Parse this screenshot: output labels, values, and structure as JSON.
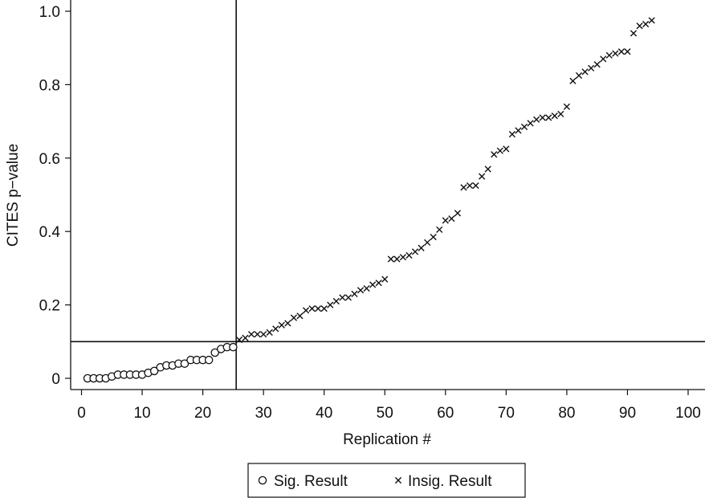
{
  "chart_data": {
    "type": "scatter",
    "xlabel": "Replication #",
    "ylabel": "CITES p−value",
    "xlim": [
      0,
      100
    ],
    "ylim": [
      0,
      1.0
    ],
    "x_ticks": [
      0,
      10,
      20,
      30,
      40,
      50,
      60,
      70,
      80,
      90,
      100
    ],
    "x_tick_labels": [
      "0",
      "10",
      "20",
      "30",
      "40",
      "50",
      "60",
      "70",
      "80",
      "90",
      "100"
    ],
    "y_ticks": [
      0,
      0.2,
      0.4,
      0.6,
      0.8,
      1.0
    ],
    "y_tick_labels": [
      "0",
      "0.2",
      "0.4",
      "0.6",
      "0.8",
      "1.0"
    ],
    "reference_lines": {
      "vertical_x": 25.5,
      "horizontal_y": 0.1
    },
    "legend_position": "bottom",
    "series": [
      {
        "name": "Sig. Result",
        "marker": "circle",
        "x": [
          1,
          2,
          3,
          4,
          5,
          6,
          7,
          8,
          9,
          10,
          11,
          12,
          13,
          14,
          15,
          16,
          17,
          18,
          19,
          20,
          21,
          22,
          23,
          24,
          25
        ],
        "y": [
          0.0,
          0.0,
          0.0,
          0.0,
          0.005,
          0.01,
          0.01,
          0.01,
          0.01,
          0.01,
          0.015,
          0.02,
          0.03,
          0.035,
          0.035,
          0.04,
          0.04,
          0.05,
          0.05,
          0.05,
          0.05,
          0.07,
          0.08,
          0.085,
          0.085
        ]
      },
      {
        "name": "Insig. Result",
        "marker": "x",
        "x": [
          26,
          27,
          28,
          29,
          30,
          31,
          32,
          33,
          34,
          35,
          36,
          37,
          38,
          39,
          40,
          41,
          42,
          43,
          44,
          45,
          46,
          47,
          48,
          49,
          50,
          51,
          52,
          53,
          54,
          55,
          56,
          57,
          58,
          59,
          60,
          61,
          62,
          63,
          64,
          65,
          66,
          67,
          68,
          69,
          70,
          71,
          72,
          73,
          74,
          75,
          76,
          77,
          78,
          79,
          80,
          81,
          82,
          83,
          84,
          85,
          86,
          87,
          88,
          89,
          90,
          91,
          92,
          93,
          94
        ],
        "y": [
          0.105,
          0.11,
          0.12,
          0.12,
          0.12,
          0.125,
          0.135,
          0.145,
          0.15,
          0.165,
          0.17,
          0.185,
          0.19,
          0.19,
          0.19,
          0.2,
          0.21,
          0.22,
          0.22,
          0.23,
          0.24,
          0.245,
          0.255,
          0.26,
          0.27,
          0.325,
          0.325,
          0.33,
          0.335,
          0.345,
          0.355,
          0.37,
          0.385,
          0.405,
          0.43,
          0.435,
          0.45,
          0.52,
          0.525,
          0.525,
          0.55,
          0.57,
          0.61,
          0.62,
          0.625,
          0.665,
          0.675,
          0.685,
          0.695,
          0.705,
          0.71,
          0.71,
          0.715,
          0.72,
          0.74,
          0.81,
          0.825,
          0.835,
          0.845,
          0.855,
          0.87,
          0.88,
          0.885,
          0.89,
          0.89,
          0.94,
          0.96,
          0.965,
          0.975
        ]
      }
    ]
  }
}
